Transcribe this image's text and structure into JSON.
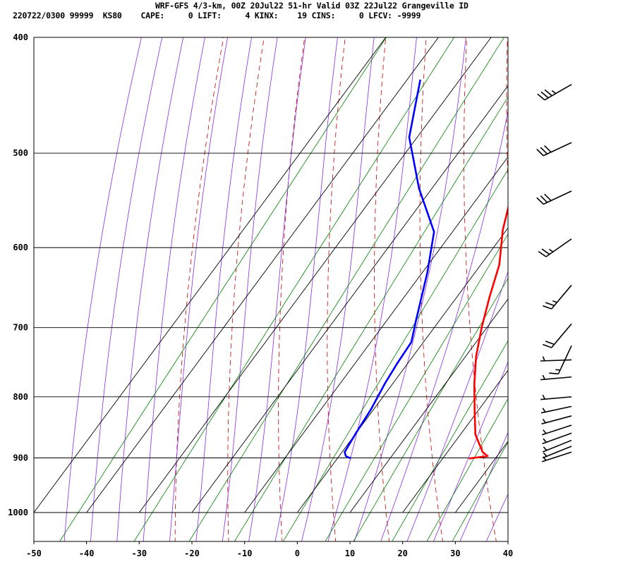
{
  "header": {
    "title": "WRF-GFS 4/3-km, 00Z 20Jul22 51-hr Valid 03Z 22Jul22 Grangeville ID",
    "stats": "220722/0300 99999  KS80    CAPE:     0 LIFT:     4 KINX:    19 CINS:     0 LFCV: -9999"
  },
  "chart_data": {
    "type": "line",
    "subtype": "skew-T log-p sounding",
    "x_axis": {
      "label": "",
      "unit": "C",
      "min": -50,
      "max": 40,
      "ticks": [
        -50,
        -40,
        -30,
        -20,
        -10,
        0,
        10,
        20,
        30,
        40
      ]
    },
    "y_axis": {
      "label": "",
      "unit": "hPa",
      "scale": "log",
      "top": 400,
      "bottom": 1050,
      "ticks": [
        400,
        500,
        600,
        700,
        800,
        900,
        1000
      ]
    },
    "grid": true,
    "series": [
      {
        "role": "temperature",
        "color": "#ff0000",
        "points": [
          {
            "p": 434,
            "t": -16.4
          },
          {
            "p": 470,
            "t": -11.8
          },
          {
            "p": 505,
            "t": -7.5
          },
          {
            "p": 540,
            "t": -4.2
          },
          {
            "p": 580,
            "t": -0.7
          },
          {
            "p": 620,
            "t": 3.5
          },
          {
            "p": 660,
            "t": 6.2
          },
          {
            "p": 700,
            "t": 9.0
          },
          {
            "p": 740,
            "t": 12.0
          },
          {
            "p": 780,
            "t": 15.5
          },
          {
            "p": 820,
            "t": 19.2
          },
          {
            "p": 860,
            "t": 22.8
          },
          {
            "p": 890,
            "t": 26.7
          },
          {
            "p": 897,
            "t": 28.2
          },
          {
            "p": 901,
            "t": 25.0
          }
        ]
      },
      {
        "role": "dewpoint",
        "color": "#0000ff",
        "points": [
          {
            "p": 434,
            "t": -37.5
          },
          {
            "p": 485,
            "t": -31.5
          },
          {
            "p": 535,
            "t": -22.5
          },
          {
            "p": 582,
            "t": -13.5
          },
          {
            "p": 630,
            "t": -9.0
          },
          {
            "p": 690,
            "t": -4.5
          },
          {
            "p": 720,
            "t": -2.3
          },
          {
            "p": 750,
            "t": -2.0
          },
          {
            "p": 780,
            "t": -1.5
          },
          {
            "p": 820,
            "t": -0.5
          },
          {
            "p": 860,
            "t": 0.0
          },
          {
            "p": 890,
            "t": 0.5
          },
          {
            "p": 897,
            "t": 1.3
          },
          {
            "p": 901,
            "t": 2.6
          }
        ]
      }
    ],
    "background_lines": {
      "isotherm_color": "#000000",
      "moist_adiabat_color": "#8a2be2",
      "dry_adiabat_color": "#c00000",
      "mixing_ratio_color": "#008000"
    },
    "wind_barbs": [
      {
        "p": 438,
        "dir": 240,
        "speed_kt": 35
      },
      {
        "p": 490,
        "dir": 245,
        "speed_kt": 30
      },
      {
        "p": 538,
        "dir": 245,
        "speed_kt": 30
      },
      {
        "p": 590,
        "dir": 235,
        "speed_kt": 25
      },
      {
        "p": 645,
        "dir": 220,
        "speed_kt": 25
      },
      {
        "p": 695,
        "dir": 220,
        "speed_kt": 20
      },
      {
        "p": 725,
        "dir": 205,
        "speed_kt": 15
      },
      {
        "p": 745,
        "dir": 268,
        "speed_kt": 5
      },
      {
        "p": 770,
        "dir": 265,
        "speed_kt": 5
      },
      {
        "p": 800,
        "dir": 265,
        "speed_kt": 5
      },
      {
        "p": 815,
        "dir": 258,
        "speed_kt": 5
      },
      {
        "p": 830,
        "dir": 255,
        "speed_kt": 5
      },
      {
        "p": 845,
        "dir": 252,
        "speed_kt": 5
      },
      {
        "p": 858,
        "dir": 250,
        "speed_kt": 5
      },
      {
        "p": 870,
        "dir": 248,
        "speed_kt": 5
      },
      {
        "p": 880,
        "dir": 248,
        "speed_kt": 5
      },
      {
        "p": 890,
        "dir": 252,
        "speed_kt": 5
      }
    ]
  }
}
